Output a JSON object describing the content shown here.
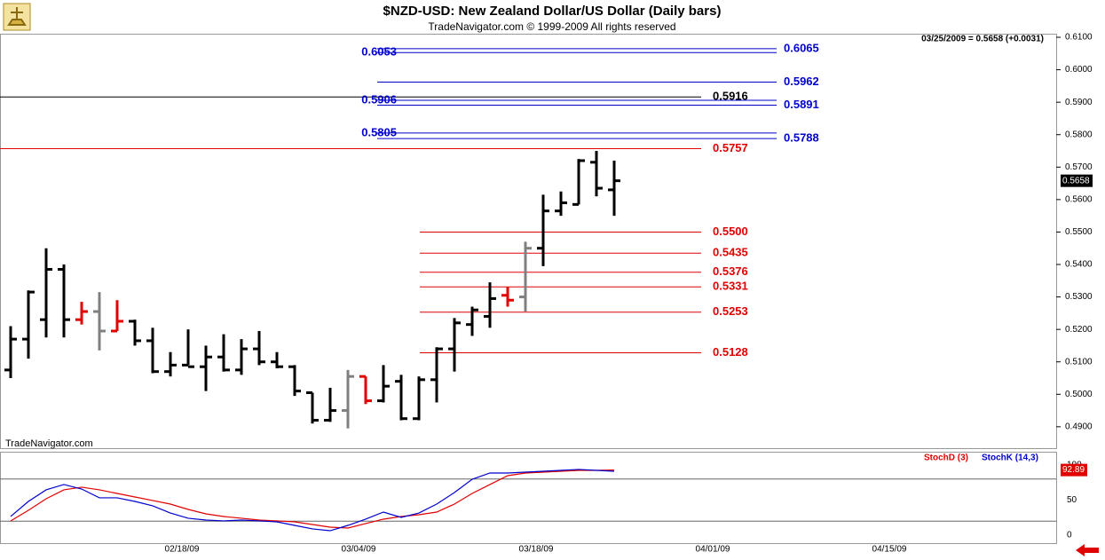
{
  "header": {
    "title": "$NZD-USD:  New Zealand Dollar/US Dollar  (Daily bars)",
    "subtitle": "TradeNavigator.com © 1999-2009 All rights reserved",
    "quote": "03/25/2009 = 0.5658 (+0.0031)",
    "watermark": "TradeNavigator.com"
  },
  "chart_data": [
    {
      "type": "ohlc",
      "open": [
        0.5075,
        0.517,
        0.523,
        0.5385,
        0.523,
        0.5255,
        0.5195,
        0.5225,
        0.5165,
        0.507,
        0.509,
        0.5085,
        0.5115,
        0.5075,
        0.514,
        0.51,
        0.5085,
        0.5005,
        0.492,
        0.495,
        0.5055,
        0.498,
        0.504,
        0.4925,
        0.5045,
        0.514,
        0.5215,
        0.524,
        0.5305,
        0.53,
        0.545,
        0.5565,
        0.5585,
        0.5715,
        0.563
      ],
      "high": [
        0.521,
        0.532,
        0.545,
        0.54,
        0.5285,
        0.5315,
        0.529,
        0.523,
        0.5205,
        0.513,
        0.52,
        0.515,
        0.5185,
        0.517,
        0.5195,
        0.513,
        0.509,
        0.5005,
        0.502,
        0.5075,
        0.5055,
        0.509,
        0.506,
        0.5055,
        0.5145,
        0.5235,
        0.527,
        0.5345,
        0.533,
        0.547,
        0.5615,
        0.5625,
        0.5725,
        0.575,
        0.572
      ],
      "low": [
        0.505,
        0.511,
        0.5175,
        0.5175,
        0.5215,
        0.5135,
        0.5195,
        0.515,
        0.5065,
        0.5055,
        0.509,
        0.501,
        0.507,
        0.506,
        0.509,
        0.508,
        0.4995,
        0.491,
        0.4915,
        0.4895,
        0.497,
        0.4975,
        0.492,
        0.492,
        0.4975,
        0.507,
        0.518,
        0.5205,
        0.527,
        0.5255,
        0.5395,
        0.555,
        0.5585,
        0.561,
        0.555
      ],
      "close": [
        0.517,
        0.5315,
        0.5385,
        0.523,
        0.5255,
        0.5195,
        0.5225,
        0.5165,
        0.507,
        0.509,
        0.5085,
        0.5115,
        0.5075,
        0.514,
        0.51,
        0.5085,
        0.501,
        0.492,
        0.495,
        0.5055,
        0.498,
        0.5025,
        0.4925,
        0.5045,
        0.514,
        0.522,
        0.526,
        0.5295,
        0.529,
        0.545,
        0.5565,
        0.559,
        0.572,
        0.5635,
        0.5658
      ],
      "colors": [
        "#000",
        "#000",
        "#000",
        "#000",
        "#e00000",
        "#808080",
        "#e00000",
        "#000",
        "#000",
        "#000",
        "#000",
        "#000",
        "#000",
        "#000",
        "#000",
        "#000",
        "#000",
        "#000",
        "#000",
        "#808080",
        "#e00000",
        "#000",
        "#000",
        "#000",
        "#000",
        "#000",
        "#000",
        "#000",
        "#e00000",
        "#808080",
        "#000",
        "#000",
        "#000",
        "#000",
        "#000"
      ],
      "ylim": [
        0.4834,
        0.6111
      ],
      "yticks": [
        {
          "value": 0.61,
          "label": "0.6100"
        },
        {
          "value": 0.6,
          "label": "0.6000"
        },
        {
          "value": 0.59,
          "label": "0.5900"
        },
        {
          "value": 0.58,
          "label": "0.5800"
        },
        {
          "value": 0.57,
          "label": "0.5700"
        },
        {
          "value": 0.56,
          "label": "0.5600"
        },
        {
          "value": 0.55,
          "label": "0.5500"
        },
        {
          "value": 0.54,
          "label": "0.5400"
        },
        {
          "value": 0.53,
          "label": "0.5300"
        },
        {
          "value": 0.52,
          "label": "0.5200"
        },
        {
          "value": 0.51,
          "label": "0.5100"
        },
        {
          "value": 0.5,
          "label": "0.5000"
        },
        {
          "value": 0.49,
          "label": "0.4900"
        }
      ],
      "levels": [
        {
          "value": 0.6065,
          "color": "#0000cc",
          "label_side": "right"
        },
        {
          "value": 0.6053,
          "color": "#0000cc",
          "label_side": "left"
        },
        {
          "value": 0.5962,
          "color": "#0000cc",
          "label_side": "right"
        },
        {
          "value": 0.5916,
          "color": "#000000",
          "label_side": "right",
          "full_width": true
        },
        {
          "value": 0.5906,
          "color": "#0000cc",
          "label_side": "left"
        },
        {
          "value": 0.5891,
          "color": "#0000cc",
          "label_side": "right"
        },
        {
          "value": 0.5805,
          "color": "#0000cc",
          "label_side": "left"
        },
        {
          "value": 0.5788,
          "color": "#0000cc",
          "label_side": "right"
        },
        {
          "value": 0.5757,
          "color": "#e00000",
          "label_side": "right",
          "full_width": true
        },
        {
          "value": 0.55,
          "label": "0.5500",
          "color": "#e00000",
          "label_side": "right"
        },
        {
          "value": 0.5435,
          "color": "#e00000",
          "label_side": "right"
        },
        {
          "value": 0.5376,
          "color": "#e00000",
          "label_side": "right"
        },
        {
          "value": 0.5331,
          "color": "#e00000",
          "label_side": "right"
        },
        {
          "value": 0.5253,
          "color": "#e00000",
          "label_side": "right"
        },
        {
          "value": 0.5128,
          "color": "#e00000",
          "label_side": "right"
        }
      ]
    },
    {
      "type": "line",
      "series": [
        {
          "name": "StochD (3)",
          "color": "#e00000",
          "values": [
            20.3,
            35.4,
            51.9,
            64.6,
            68.4,
            64.6,
            59.5,
            54.4,
            49.4,
            44.3,
            36.7,
            30.4,
            26.6,
            24.1,
            21.5,
            20.3,
            19.0,
            15.2,
            11.4,
            10.1,
            16.5,
            22.8,
            26.6,
            29.1,
            32.9,
            44.3,
            59.5,
            72.2,
            84.8,
            88.6,
            89.9,
            91.1,
            92.4,
            92.4,
            92.89
          ]
        },
        {
          "name": "StochK (14,3)",
          "color": "#0000cc",
          "values": [
            26.6,
            48.1,
            64.6,
            72.2,
            65.8,
            53.2,
            53.2,
            48.1,
            41.8,
            31.6,
            24.1,
            21.5,
            20.3,
            21.5,
            20.3,
            19.0,
            13.9,
            8.9,
            6.3,
            13.9,
            22.8,
            32.9,
            25.3,
            31.6,
            44.3,
            60.8,
            79.7,
            88.6,
            88.6,
            89.9,
            91.1,
            92.4,
            93.7,
            92.4,
            91.1
          ]
        }
      ],
      "ylim": [
        -11.4,
        117.7
      ],
      "yticks": [
        0,
        50,
        100
      ],
      "levels": [
        80,
        20
      ],
      "xticks": [
        {
          "value": 9.65,
          "label": "02/18/09"
        },
        {
          "value": 19.6,
          "label": "03/04/09"
        },
        {
          "value": 29.6,
          "label": "03/18/09"
        },
        {
          "value": 39.55,
          "label": "04/01/09"
        },
        {
          "value": 49.5,
          "label": "04/15/09"
        }
      ]
    }
  ]
}
